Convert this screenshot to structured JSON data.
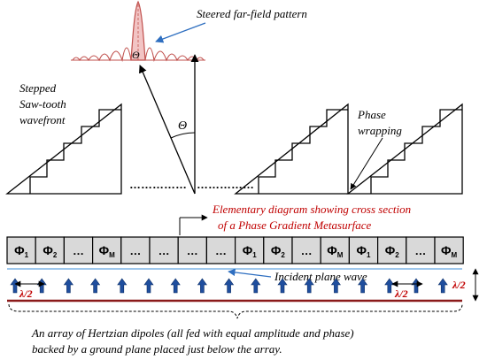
{
  "labels": {
    "far_field": "Steered far-field pattern",
    "stepped_1": "Stepped",
    "stepped_2": "Saw-tooth",
    "stepped_3": "wavefront",
    "phase_1": "Phase",
    "phase_2": "wrapping",
    "theta": "Θ",
    "dots_mid": "……………",
    "elementary_1": "Elementary diagram showing cross section",
    "elementary_2": "of a Phase Gradient Metasurface",
    "incident": "Incident plane wave",
    "lambda_half": "λ/2",
    "caption_1": "An array of Hertzian dipoles (all fed with equal amplitude and phase)",
    "caption_2": "backed by a ground plane placed just below the array."
  },
  "cells": [
    {
      "base": "Φ",
      "sub": "1"
    },
    {
      "base": "Φ",
      "sub": "2"
    },
    {
      "base": "…",
      "sub": ""
    },
    {
      "base": "Φ",
      "sub": "M"
    },
    {
      "base": "…",
      "sub": ""
    },
    {
      "base": "…",
      "sub": ""
    },
    {
      "base": "…",
      "sub": ""
    },
    {
      "base": "…",
      "sub": ""
    },
    {
      "base": "Φ",
      "sub": "1"
    },
    {
      "base": "Φ",
      "sub": "2"
    },
    {
      "base": "…",
      "sub": ""
    },
    {
      "base": "Φ",
      "sub": "M"
    },
    {
      "base": "Φ",
      "sub": "1"
    },
    {
      "base": "Φ",
      "sub": "2"
    },
    {
      "base": "…",
      "sub": ""
    },
    {
      "base": "Φ",
      "sub": "M"
    }
  ],
  "colors": {
    "cell_fill": "#d9d9d9",
    "red_text": "#c00000",
    "pattern": "#c0504d",
    "pattern_fill": "#f2c4c4",
    "arrow_blue": "#1f4e9e",
    "ground": "#8b1a1a",
    "incident_line": "#3c8fd8"
  }
}
